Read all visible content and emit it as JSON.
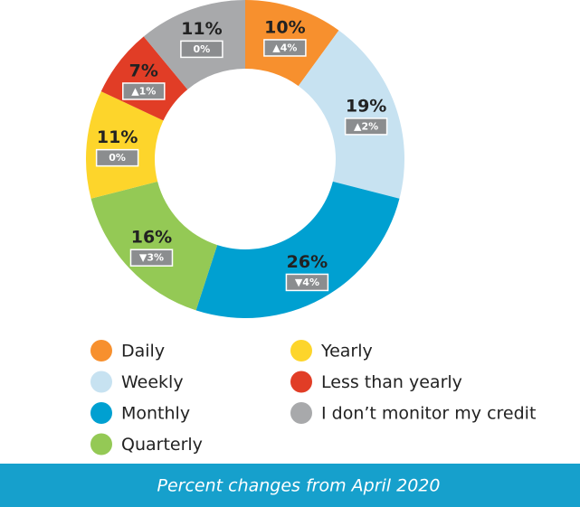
{
  "chart_data": {
    "type": "pie",
    "categories": [
      "Daily",
      "Weekly",
      "Monthly",
      "Quarterly",
      "Yearly",
      "Less than yearly",
      "I don’t monitor my credit"
    ],
    "values": [
      10,
      19,
      26,
      16,
      11,
      7,
      11
    ],
    "value_labels": [
      "10%",
      "19%",
      "26%",
      "16%",
      "11%",
      "7%",
      "11%"
    ],
    "colors": [
      "#f7902e",
      "#c7e2f1",
      "#00a0d1",
      "#94c955",
      "#fdd52b",
      "#e13d26",
      "#a8a9ab"
    ],
    "changes": [
      4,
      2,
      -4,
      -3,
      0,
      1,
      0
    ],
    "change_labels": [
      "▲4%",
      "▲2%",
      "▼4%",
      "▼3%",
      "0%",
      "▲1%",
      "0%"
    ],
    "donut": true,
    "caption": "Percent changes from April 2020"
  }
}
